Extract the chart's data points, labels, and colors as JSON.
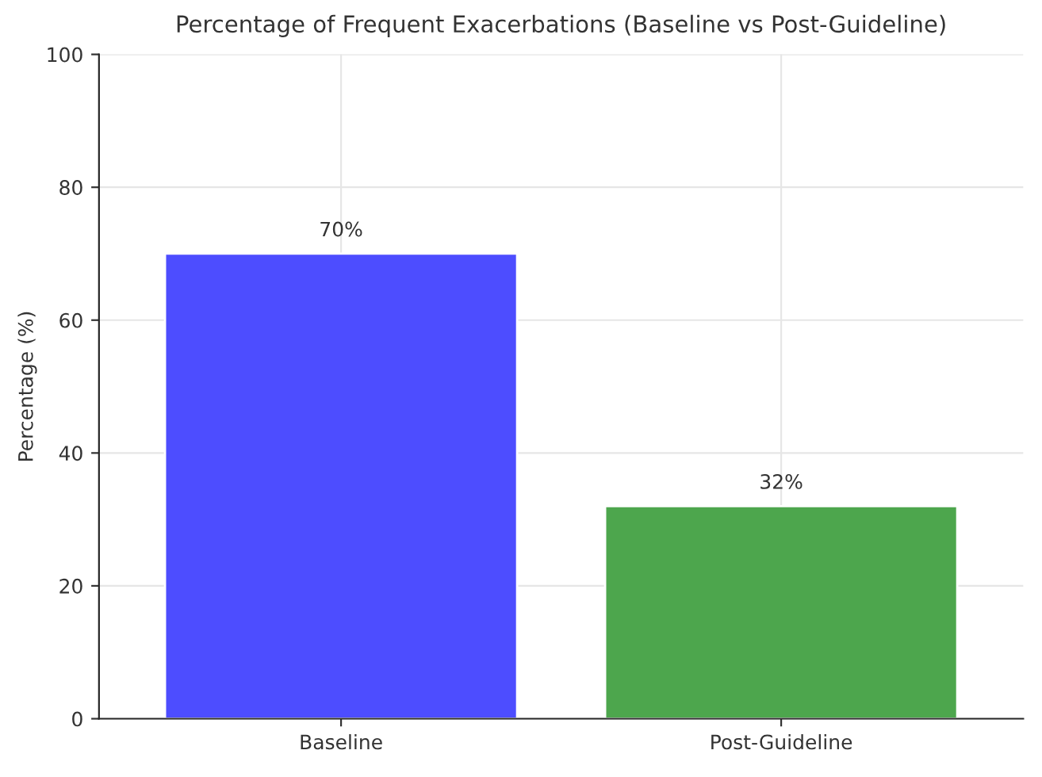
{
  "chart_data": {
    "type": "bar",
    "title": "Percentage of Frequent Exacerbations (Baseline vs Post-Guideline)",
    "ylabel": "Percentage (%)",
    "categories": [
      "Baseline",
      "Post-Guideline"
    ],
    "values": [
      70,
      32
    ],
    "colors": [
      "#4d4dff",
      "#4da64d"
    ],
    "value_labels": [
      "70%",
      "32%"
    ],
    "ylim": [
      0,
      100
    ],
    "yticks": [
      0,
      20,
      40,
      60,
      80,
      100
    ],
    "grid": true
  }
}
